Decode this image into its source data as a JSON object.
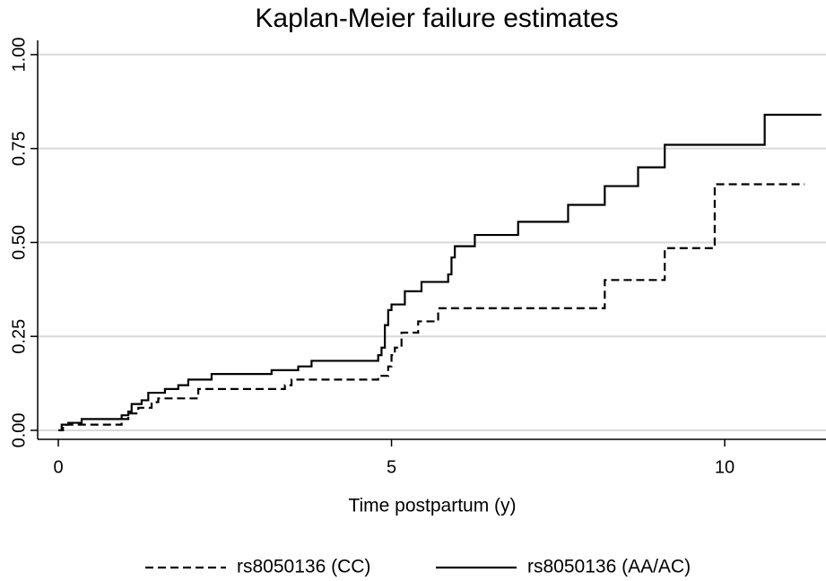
{
  "chart_data": {
    "type": "step",
    "title": "Kaplan-Meier failure estimates",
    "x_label": "Time postpartum (y)",
    "xlim": [
      -0.31,
      11.52
    ],
    "xticks": [
      0,
      5,
      10
    ],
    "ylim": [
      -0.024,
      1.038
    ],
    "yticks": [
      {
        "value": 0,
        "label": "0.00"
      },
      {
        "value": 0.25,
        "label": "0.25"
      },
      {
        "value": 0.5,
        "label": "0.50"
      },
      {
        "value": 0.75,
        "label": "0.75"
      },
      {
        "value": 1,
        "label": "1.00"
      }
    ],
    "grid": true,
    "legend": "bottom",
    "series": [
      {
        "name": "rs8050136 (CC)",
        "color": "#000000",
        "dash": true,
        "x": [
          0,
          0.07,
          0.95,
          1.05,
          1.2,
          1.4,
          1.5,
          2.1,
          3.4,
          3.5,
          4.8,
          4.95,
          5.0,
          5.05,
          5.15,
          5.4,
          5.7,
          8.2,
          9.1,
          9.85,
          11.2
        ],
        "values": [
          0,
          0.015,
          0.03,
          0.045,
          0.06,
          0.075,
          0.085,
          0.11,
          0.12,
          0.135,
          0.145,
          0.17,
          0.2,
          0.22,
          0.26,
          0.29,
          0.325,
          0.4,
          0.485,
          0.655,
          0.655
        ]
      },
      {
        "name": "rs8050136 (AA/AC)",
        "color": "#000000",
        "dash": false,
        "x": [
          0,
          0.05,
          0.15,
          0.35,
          0.95,
          1.05,
          1.1,
          1.25,
          1.35,
          1.6,
          1.8,
          1.95,
          2.3,
          3.2,
          3.6,
          3.8,
          4.8,
          4.85,
          4.9,
          4.95,
          5.0,
          5.2,
          5.45,
          5.85,
          5.9,
          5.95,
          6.25,
          6.9,
          7.65,
          8.2,
          8.7,
          9.1,
          10.6,
          11.45
        ],
        "values": [
          0,
          0.015,
          0.02,
          0.03,
          0.04,
          0.05,
          0.07,
          0.08,
          0.1,
          0.11,
          0.12,
          0.135,
          0.15,
          0.16,
          0.17,
          0.185,
          0.2,
          0.22,
          0.28,
          0.32,
          0.335,
          0.37,
          0.395,
          0.415,
          0.46,
          0.49,
          0.52,
          0.555,
          0.6,
          0.65,
          0.7,
          0.76,
          0.84,
          0.84
        ]
      }
    ]
  }
}
